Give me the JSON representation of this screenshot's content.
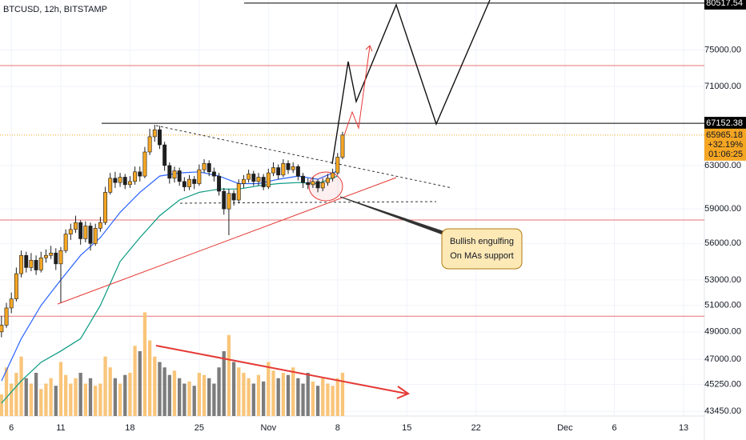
{
  "chart_data": {
    "type": "candlestick",
    "title": "BTCUSD, 12h, BITSTAMP",
    "log_scale": true,
    "grid": true,
    "up_color": "#f5a623",
    "down_color": "#1e1e1e",
    "volume_up_color": "#f9c57a",
    "volume_down_color": "#7c7c7c",
    "xlim": [
      4.85,
      76.1
    ],
    "xticks": [
      {
        "value": 6,
        "label": "6"
      },
      {
        "value": 11,
        "label": "11"
      },
      {
        "value": 18,
        "label": "18"
      },
      {
        "value": 25,
        "label": "25"
      },
      {
        "value": 32,
        "label": "Nov"
      },
      {
        "value": 39,
        "label": "8"
      },
      {
        "value": 46,
        "label": "15"
      },
      {
        "value": 53,
        "label": "22"
      },
      {
        "value": 62,
        "label": "Dec"
      },
      {
        "value": 67,
        "label": "6"
      },
      {
        "value": 74,
        "label": "13"
      }
    ],
    "ylim": [
      43150,
      80900
    ],
    "yticks": [
      {
        "value": 43450,
        "label": "43450.00"
      },
      {
        "value": 45250,
        "label": "45250.00"
      },
      {
        "value": 47000,
        "label": "47000.00"
      },
      {
        "value": 49000,
        "label": "49000.00"
      },
      {
        "value": 51000,
        "label": "51000.00"
      },
      {
        "value": 53000,
        "label": "53000.00"
      },
      {
        "value": 56000,
        "label": "56000.00"
      },
      {
        "value": 59000,
        "label": "59000.00"
      },
      {
        "value": 63000,
        "label": "63000.00"
      },
      {
        "value": 71000,
        "label": "71000.00"
      },
      {
        "value": 75000,
        "label": "75000.00"
      }
    ],
    "volume_lim": [
      0,
      100
    ],
    "x": [
      5.0,
      5.5,
      6.0,
      6.5,
      7.0,
      7.5,
      8.0,
      8.5,
      9.0,
      9.5,
      10.0,
      10.5,
      11.0,
      11.5,
      12.0,
      12.5,
      13.0,
      13.5,
      14.0,
      14.5,
      15.0,
      15.5,
      16.0,
      16.5,
      17.0,
      17.5,
      18.0,
      18.5,
      19.0,
      19.5,
      20.0,
      20.5,
      21.0,
      21.5,
      22.0,
      22.5,
      23.0,
      23.5,
      24.0,
      24.5,
      25.0,
      25.5,
      26.0,
      26.5,
      27.0,
      27.5,
      28.0,
      28.5,
      29.0,
      29.5,
      30.0,
      30.5,
      31.0,
      31.5,
      32.0,
      32.5,
      33.0,
      33.5,
      34.0,
      34.5,
      35.0,
      35.5,
      36.0,
      36.5,
      37.0,
      37.5,
      38.0,
      38.5,
      39.0,
      39.5
    ],
    "open": [
      49000,
      49500,
      50800,
      51500,
      53500,
      55000,
      54000,
      54600,
      53800,
      54800,
      55000,
      55200,
      54300,
      55400,
      56800,
      57200,
      57800,
      56400,
      57500,
      56000,
      57300,
      57800,
      60500,
      61800,
      61400,
      61900,
      61200,
      61500,
      62400,
      62000,
      64300,
      65800,
      66500,
      65000,
      63000,
      61800,
      62500,
      61500,
      61000,
      61700,
      61300,
      62600,
      63200,
      62400,
      62000,
      60600,
      59000,
      60400,
      59800,
      61300,
      61700,
      62200,
      61500,
      61900,
      61000,
      62300,
      62800,
      62100,
      63200,
      62600,
      62900,
      62000,
      61400,
      61200,
      61500,
      60900,
      61400,
      61800,
      62300,
      63800
    ],
    "high": [
      50200,
      51200,
      52000,
      54000,
      55400,
      55300,
      55200,
      55000,
      55300,
      55500,
      55800,
      55600,
      55700,
      57200,
      57700,
      58400,
      58000,
      57900,
      57800,
      57700,
      58300,
      61000,
      62300,
      62400,
      62300,
      62200,
      62000,
      62900,
      62900,
      64800,
      66600,
      67000,
      66900,
      65300,
      63300,
      62900,
      62800,
      61900,
      62100,
      62000,
      63100,
      63600,
      63500,
      62800,
      62300,
      60900,
      60800,
      60700,
      61700,
      62100,
      62600,
      62500,
      62300,
      62200,
      62700,
      63300,
      63100,
      63600,
      63500,
      63300,
      63100,
      62300,
      61800,
      61900,
      61700,
      61800,
      62200,
      62700,
      64200,
      66300
    ],
    "low": [
      48600,
      49300,
      50400,
      51300,
      53200,
      53600,
      53700,
      53400,
      53600,
      54400,
      54700,
      53800,
      51200,
      55200,
      56300,
      56900,
      55900,
      56100,
      55400,
      55800,
      57000,
      57600,
      60300,
      60900,
      61000,
      60800,
      60900,
      61200,
      61500,
      61800,
      64000,
      65300,
      64600,
      62500,
      61300,
      61400,
      61100,
      60600,
      60700,
      60800,
      61100,
      62300,
      62000,
      61500,
      60200,
      58500,
      56700,
      59300,
      59500,
      60900,
      61400,
      61100,
      61100,
      60700,
      60800,
      62000,
      61700,
      61900,
      62200,
      62300,
      61600,
      60900,
      60800,
      60900,
      60500,
      60600,
      61100,
      61500,
      62100,
      63600
    ],
    "close": [
      49500,
      50800,
      51500,
      53500,
      55000,
      54000,
      54600,
      53800,
      54800,
      55000,
      55200,
      54300,
      55400,
      56800,
      57200,
      57800,
      56400,
      57500,
      56000,
      57300,
      57800,
      60500,
      61800,
      61400,
      61900,
      61200,
      61500,
      62400,
      62000,
      64300,
      65800,
      66500,
      65000,
      63000,
      61800,
      62500,
      61500,
      61000,
      61700,
      61300,
      62600,
      63200,
      62400,
      62000,
      60600,
      59000,
      60400,
      59800,
      61300,
      61700,
      62200,
      61500,
      61900,
      61000,
      62300,
      62800,
      62100,
      63200,
      62600,
      62900,
      62000,
      61400,
      61200,
      61500,
      60900,
      61400,
      61800,
      62300,
      63800,
      65965.18
    ],
    "volume": [
      20,
      45,
      30,
      40,
      55,
      35,
      30,
      40,
      25,
      30,
      35,
      28,
      50,
      38,
      30,
      35,
      40,
      30,
      35,
      28,
      30,
      55,
      45,
      35,
      30,
      38,
      40,
      65,
      60,
      96,
      70,
      55,
      50,
      45,
      38,
      42,
      35,
      30,
      32,
      28,
      40,
      38,
      35,
      30,
      45,
      60,
      75,
      50,
      45,
      40,
      35,
      30,
      38,
      32,
      50,
      42,
      35,
      40,
      38,
      45,
      35,
      30,
      40,
      32,
      28,
      35,
      30,
      28,
      35,
      40
    ],
    "moving_averages": [
      {
        "color": "#2962ff",
        "x": [
          5,
          7,
          9,
          11,
          13,
          15,
          17,
          19,
          21,
          23,
          25,
          27,
          29,
          31,
          33,
          35,
          37,
          39
        ],
        "values": [
          45500,
          48500,
          51000,
          53000,
          55000,
          56500,
          58700,
          60500,
          62000,
          62300,
          62400,
          62000,
          61300,
          61300,
          61700,
          62000,
          61700,
          62500
        ]
      },
      {
        "color": "#089981",
        "x": [
          5,
          7,
          9,
          11,
          13,
          15,
          17,
          19,
          21,
          23,
          25,
          27,
          29,
          31,
          33,
          35,
          37,
          39
        ],
        "values": [
          44000,
          45500,
          46800,
          47600,
          48500,
          51000,
          54500,
          56500,
          58400,
          59800,
          60500,
          60800,
          60800,
          61100,
          61300,
          61400,
          61300,
          62000
        ]
      }
    ],
    "price_lines": [
      {
        "value": 80517.54,
        "color": "#000000"
      },
      {
        "value": 67152.38,
        "color": "#000000"
      }
    ],
    "levels": [
      {
        "value": 73270,
        "color": "#e57373"
      },
      {
        "value": 58020,
        "color": "#e57373"
      },
      {
        "value": 50170,
        "color": "#e57373"
      }
    ],
    "last_price": 65965.18,
    "last_change": "+32.19%",
    "countdown": "01:06:25",
    "annotation": [
      "Bullish engulfing",
      "On MAs support"
    ]
  }
}
